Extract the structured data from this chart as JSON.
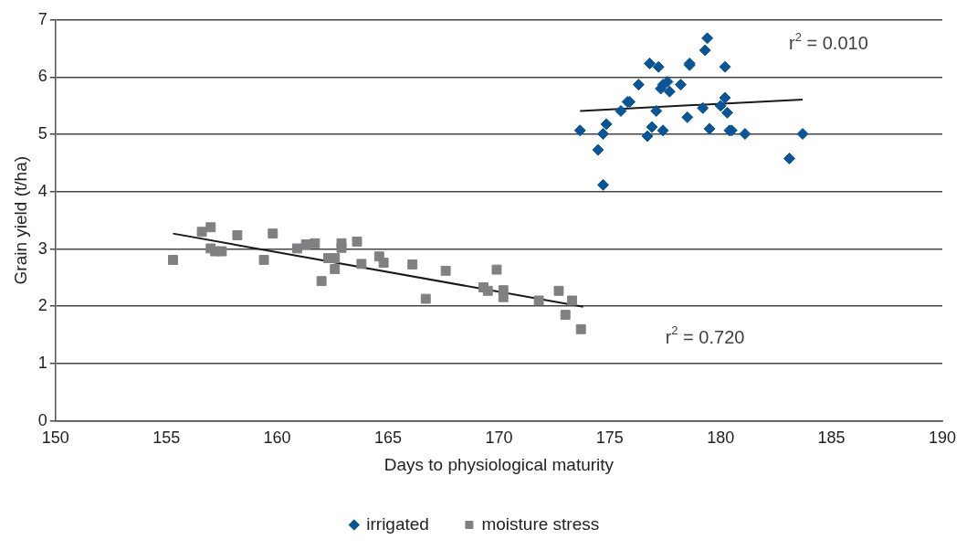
{
  "chart_data": {
    "type": "scatter",
    "xlabel": "Days to physiological maturity",
    "ylabel": "Grain yield (t/ha)",
    "xlim": [
      150,
      190
    ],
    "xticks": [
      150,
      155,
      160,
      165,
      170,
      175,
      180,
      185,
      190
    ],
    "ylim": [
      0,
      7
    ],
    "yticks": [
      0,
      1,
      2,
      3,
      4,
      5,
      6,
      7
    ],
    "grid": "y",
    "legend": "bottom",
    "series": [
      {
        "name": "irrigated",
        "color": "#0b5594",
        "marker": "diamond",
        "x": [
          173.66,
          174.47,
          174.7,
          174.7,
          174.85,
          175.5,
          175.8,
          175.9,
          176.3,
          176.7,
          176.8,
          176.9,
          177.1,
          177.2,
          177.3,
          177.4,
          177.4,
          177.6,
          177.7,
          178.2,
          178.5,
          178.6,
          178.6,
          179.2,
          179.3,
          179.4,
          179.5,
          180.0,
          180.2,
          180.2,
          180.3,
          180.4,
          180.5,
          181.1,
          183.1,
          183.7
        ],
        "values": [
          5.07,
          4.73,
          5.01,
          4.12,
          5.18,
          5.41,
          5.57,
          5.57,
          5.87,
          4.97,
          6.24,
          5.13,
          5.41,
          6.18,
          5.8,
          5.07,
          5.87,
          5.92,
          5.75,
          5.87,
          5.3,
          6.24,
          6.21,
          5.46,
          6.47,
          6.68,
          5.1,
          5.5,
          5.64,
          6.18,
          5.38,
          5.07,
          5.07,
          5.01,
          4.58,
          5.01
        ]
      },
      {
        "name": "moisture stress",
        "color": "#808083",
        "marker": "square",
        "x": [
          155.3,
          156.6,
          157.0,
          157.0,
          157.2,
          157.5,
          158.2,
          159.4,
          159.8,
          160.9,
          161.3,
          161.7,
          162.0,
          162.3,
          162.6,
          162.6,
          162.9,
          162.9,
          163.6,
          163.8,
          164.6,
          164.8,
          166.1,
          166.7,
          167.6,
          169.3,
          169.5,
          169.9,
          170.2,
          170.2,
          171.8,
          172.7,
          173.0,
          173.3,
          173.7
        ],
        "values": [
          2.81,
          3.3,
          3.38,
          3.01,
          2.96,
          2.96,
          3.24,
          2.81,
          3.27,
          3.01,
          3.08,
          3.1,
          2.44,
          2.84,
          2.84,
          2.65,
          3.1,
          3.02,
          3.13,
          2.74,
          2.87,
          2.76,
          2.73,
          2.13,
          2.62,
          2.33,
          2.27,
          2.64,
          2.28,
          2.16,
          2.1,
          2.27,
          1.85,
          2.1,
          1.6
        ]
      },
      {
        "type": "line",
        "color": "#1a1a1a",
        "marker": "none",
        "x": [
          173.66,
          183.7
        ],
        "values": [
          5.41,
          5.61
        ]
      },
      {
        "type": "line",
        "color": "#1a1a1a",
        "marker": "none",
        "x": [
          155.3,
          173.8
        ],
        "values": [
          3.27,
          1.99
        ]
      }
    ],
    "annotations": [
      "r$^{2}$ = 0.010",
      "r$^{2}$ = 0.720"
    ]
  }
}
